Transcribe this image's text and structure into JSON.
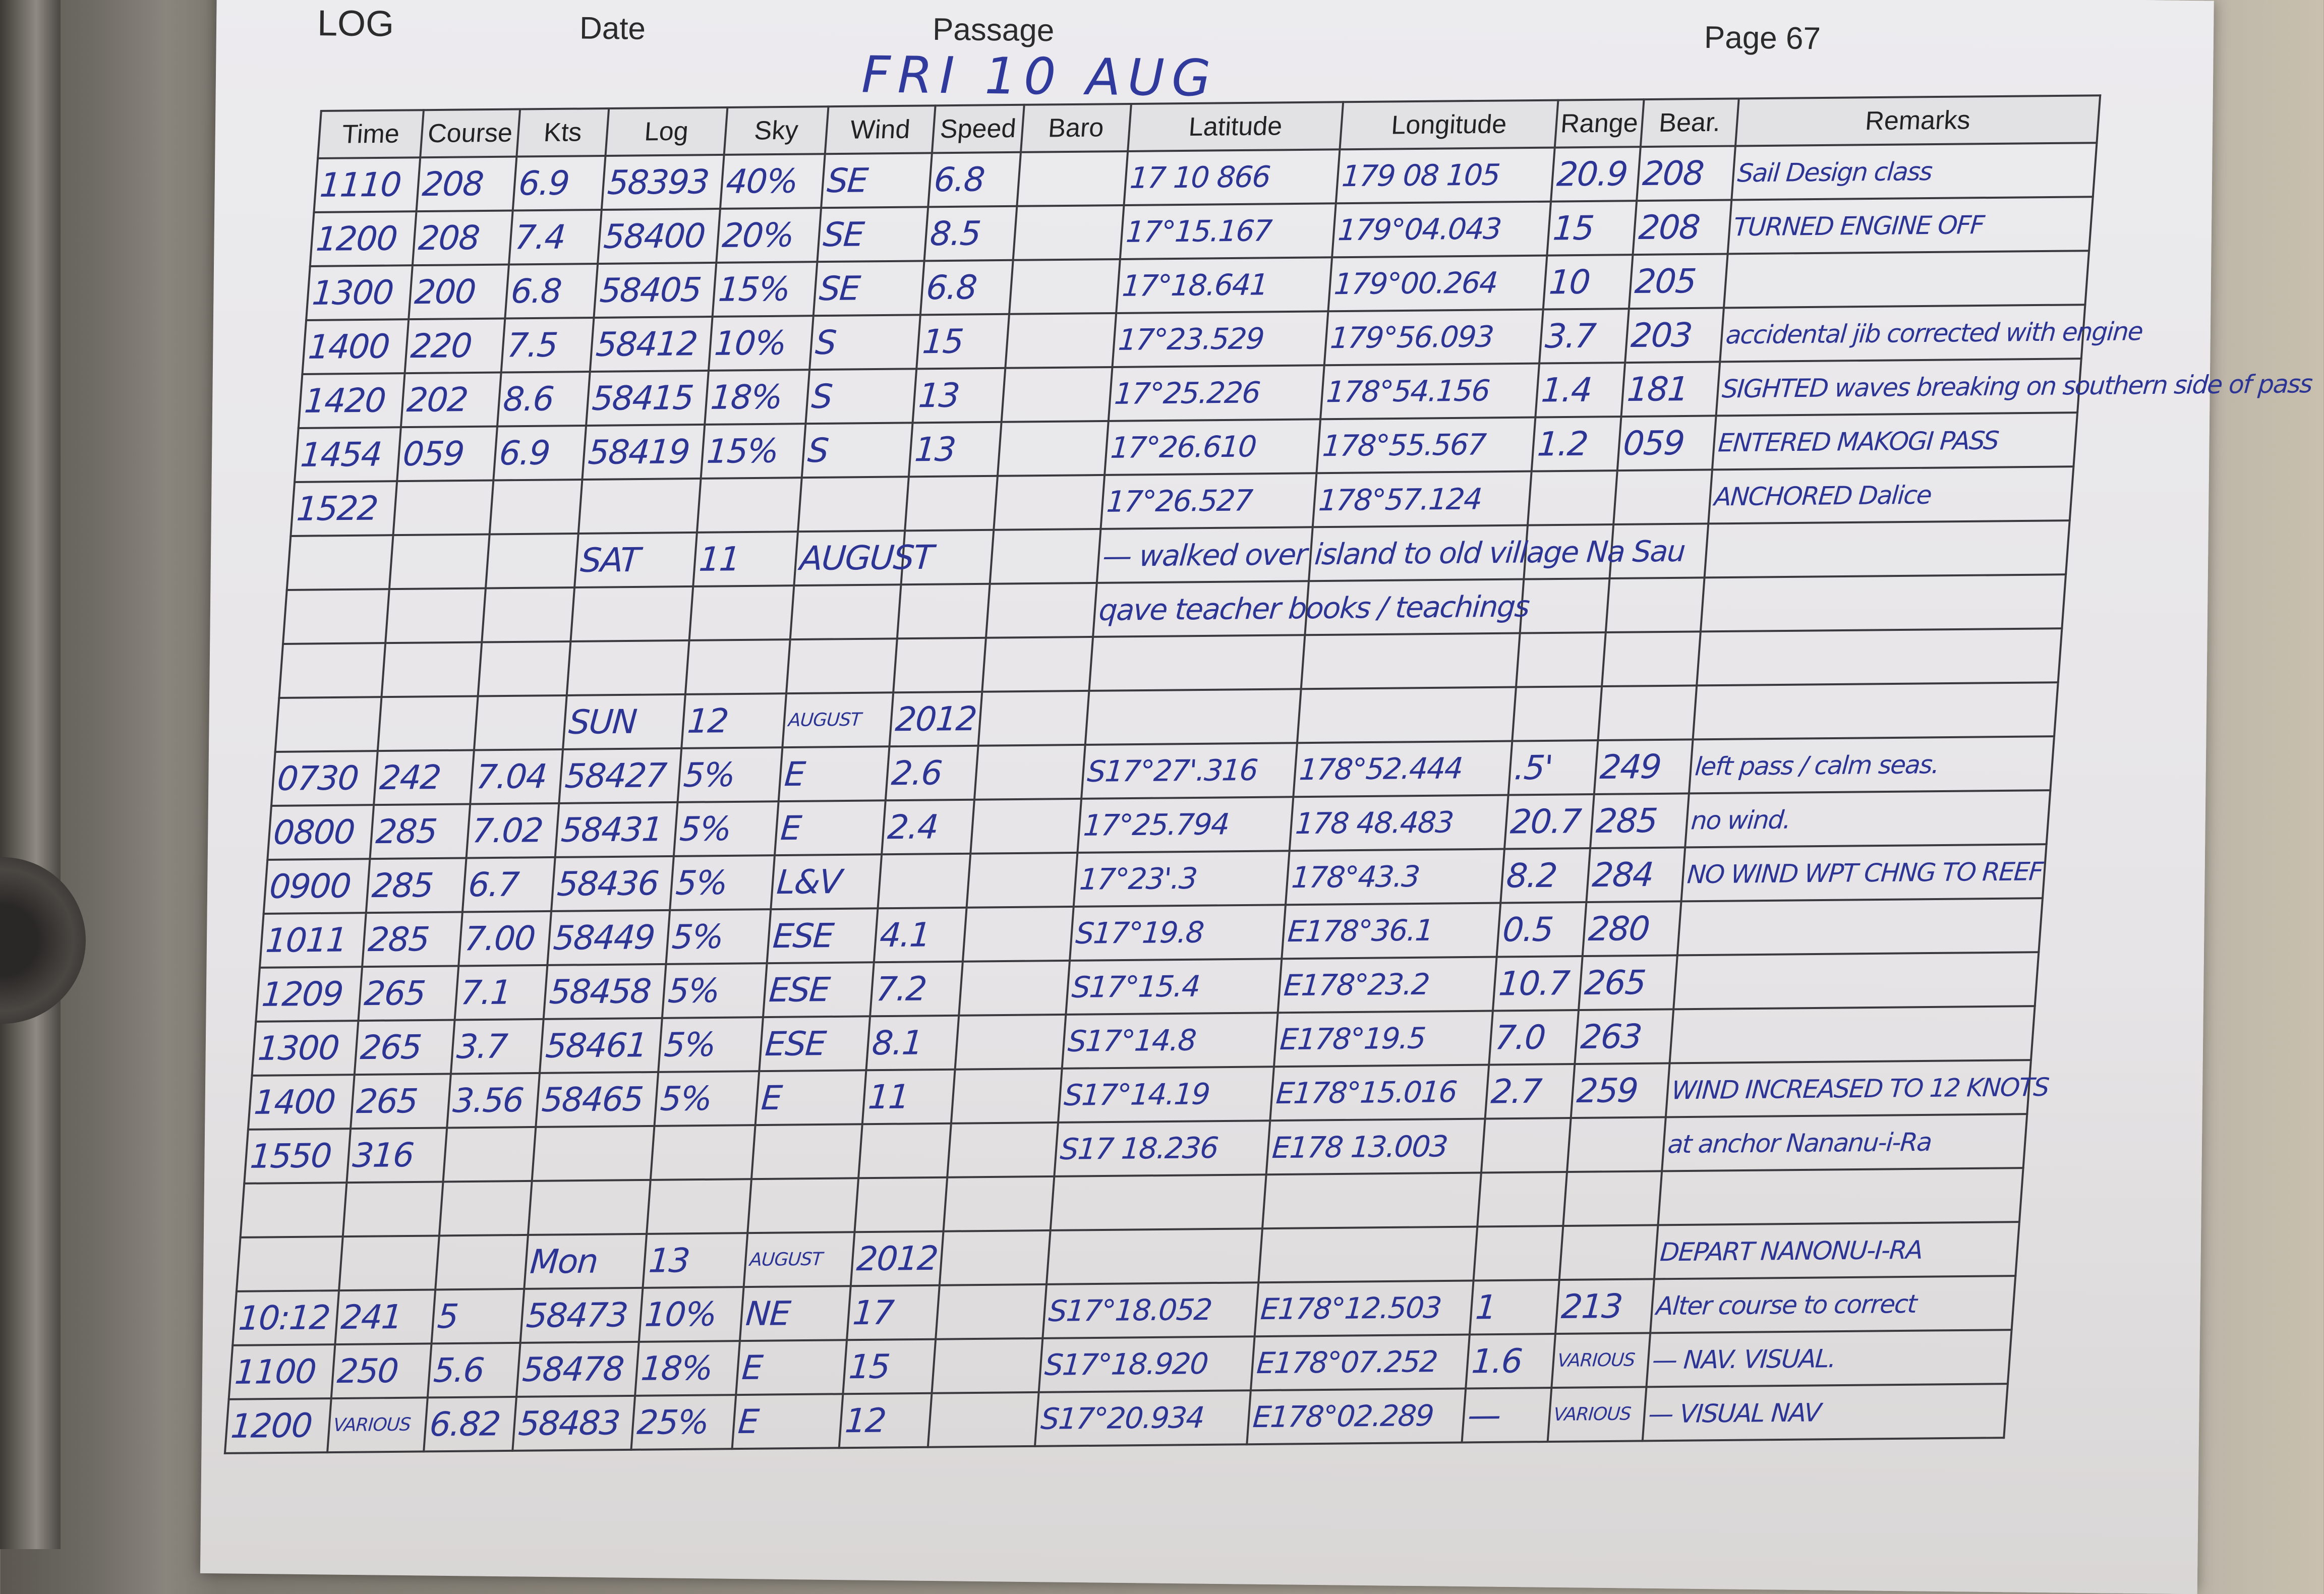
{
  "page": {
    "log_label": "LOG",
    "date_label": "Date",
    "passage_label": "Passage",
    "page_label": "Page 67",
    "handwritten_date": "FRI 10 AUG"
  },
  "columns": [
    "Time",
    "Course",
    "Kts",
    "Log",
    "Sky",
    "Wind",
    "Speed",
    "Baro",
    "Latitude",
    "Longitude",
    "Range",
    "Bear.",
    "Remarks"
  ],
  "rows": [
    [
      "1110",
      "208",
      "6.9",
      "58393",
      "40%",
      "SE",
      "6.8",
      "",
      "17 10 866",
      "179 08 105",
      "20.9",
      "208",
      "Sail Design class"
    ],
    [
      "1200",
      "208",
      "7.4",
      "58400",
      "20%",
      "SE",
      "8.5",
      "",
      "17°15.167",
      "179°04.043",
      "15",
      "208",
      "TURNED ENGINE OFF"
    ],
    [
      "1300",
      "200",
      "6.8",
      "58405",
      "15%",
      "SE",
      "6.8",
      "",
      "17°18.641",
      "179°00.264",
      "10",
      "205",
      ""
    ],
    [
      "1400",
      "220",
      "7.5",
      "58412",
      "10%",
      "S",
      "15",
      "",
      "17°23.529",
      "179°56.093",
      "3.7",
      "203",
      "accidental jib corrected with engine"
    ],
    [
      "1420",
      "202",
      "8.6",
      "58415",
      "18%",
      "S",
      "13",
      "",
      "17°25.226",
      "178°54.156",
      "1.4",
      "181",
      "SIGHTED waves breaking on southern side of pass"
    ],
    [
      "1454",
      "059",
      "6.9",
      "58419",
      "15%",
      "S",
      "13",
      "",
      "17°26.610",
      "178°55.567",
      "1.2",
      "059",
      "ENTERED MAKOGI PASS"
    ],
    [
      "1522",
      "",
      "",
      "",
      "",
      "",
      "",
      "",
      "17°26.527",
      "178°57.124",
      "",
      "",
      "ANCHORED Dalice"
    ],
    [
      "",
      "",
      "",
      "SAT",
      "11",
      "AUGUST",
      "",
      "",
      "— walked over island to old village Na Sau",
      "",
      "",
      "",
      ""
    ],
    [
      "",
      "",
      "",
      "",
      "",
      "",
      "",
      "",
      "qave teacher books / teachings",
      "",
      "",
      "",
      ""
    ],
    [
      "",
      "",
      "",
      "",
      "",
      "",
      "",
      "",
      "",
      "",
      "",
      "",
      ""
    ],
    [
      "",
      "",
      "",
      "SUN",
      "12",
      "AUGUST",
      "2012",
      "",
      "",
      "",
      "",
      "",
      ""
    ],
    [
      "0730",
      "242",
      "7.04",
      "58427",
      "5%",
      "E",
      "2.6",
      "",
      "S17°27'.316",
      "178°52.444",
      ".5'",
      "249",
      "left pass / calm seas."
    ],
    [
      "0800",
      "285",
      "7.02",
      "58431",
      "5%",
      "E",
      "2.4",
      "",
      "17°25.794",
      "178 48.483",
      "20.7",
      "285",
      "no wind."
    ],
    [
      "0900",
      "285",
      "6.7",
      "58436",
      "5%",
      "L&V",
      "",
      "",
      "17°23'.3",
      "178°43.3",
      "8.2",
      "284",
      "NO WIND   WPT CHNG TO REEF"
    ],
    [
      "1011",
      "285",
      "7.00",
      "58449",
      "5%",
      "ESE",
      "4.1",
      "",
      "S17°19.8",
      "E178°36.1",
      "0.5",
      "280",
      ""
    ],
    [
      "1209",
      "265",
      "7.1",
      "58458",
      "5%",
      "ESE",
      "7.2",
      "",
      "S17°15.4",
      "E178°23.2",
      "10.7",
      "265",
      ""
    ],
    [
      "1300",
      "265",
      "3.7",
      "58461",
      "5%",
      "ESE",
      "8.1",
      "",
      "S17°14.8",
      "E178°19.5",
      "7.0",
      "263",
      ""
    ],
    [
      "1400",
      "265",
      "3.56",
      "58465",
      "5%",
      "E",
      "11",
      "",
      "S17°14.19",
      "E178°15.016",
      "2.7",
      "259",
      "WIND INCREASED TO 12 KNOTS"
    ],
    [
      "1550",
      "316",
      "",
      "",
      "",
      "",
      "",
      "",
      "S17 18.236",
      "E178 13.003",
      "",
      "",
      "at anchor Nananu-i-Ra"
    ],
    [
      "",
      "",
      "",
      "",
      "",
      "",
      "",
      "",
      "",
      "",
      "",
      "",
      ""
    ],
    [
      "",
      "",
      "",
      "Mon",
      "13",
      "AUGUST",
      "2012",
      "",
      "",
      "",
      "",
      "",
      "DEPART NANONU-I-RA"
    ],
    [
      "10:12",
      "241",
      "5",
      "58473",
      "10%",
      "NE",
      "17",
      "",
      "S17°18.052",
      "E178°12.503",
      "1",
      "213",
      "Alter course to correct"
    ],
    [
      "1100",
      "250",
      "5.6",
      "58478",
      "18%",
      "E",
      "15",
      "",
      "S17°18.920",
      "E178°07.252",
      "1.6",
      "VARIOUS",
      "— NAV. VISUAL."
    ],
    [
      "1200",
      "VARIOUS",
      "6.82",
      "58483",
      "25%",
      "E",
      "12",
      "",
      "S17°20.934",
      "E178°02.289",
      "—",
      "VARIOUS",
      "— VISUAL NAV"
    ]
  ],
  "colors": {
    "ink": "#2c3494",
    "paper": "#e8e7ea",
    "rule": "#3a3a3e"
  }
}
